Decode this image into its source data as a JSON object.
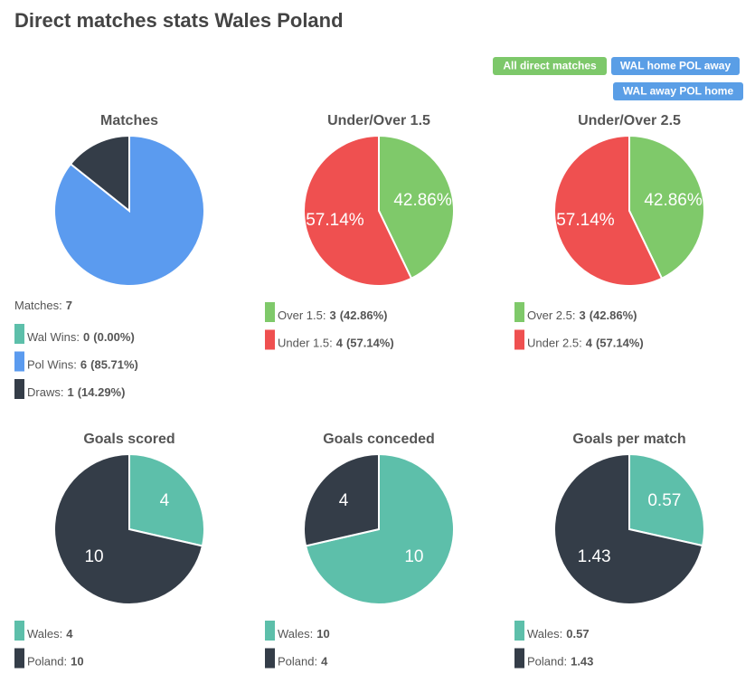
{
  "title": "Direct matches stats Wales Poland",
  "buttons": [
    {
      "label": "All direct matches",
      "color": "#7dc86a"
    },
    {
      "label": "WAL home POL away",
      "color": "#5a9ee6"
    },
    {
      "label": "WAL away POL home",
      "color": "#5a9ee6"
    }
  ],
  "chart_data": [
    {
      "type": "pie",
      "title": "Matches",
      "total_label": "Matches:",
      "total": 7,
      "categories": [
        "Wal Wins:",
        "Pol Wins:",
        "Draws:"
      ],
      "values": [
        0,
        6,
        1
      ],
      "percents": [
        0,
        85.71,
        14.29
      ],
      "percent_labels": [
        "(0.00%)",
        "(85.71%)",
        "(14.29%)"
      ],
      "colors": [
        "#5dbfaa",
        "#5b9bef",
        "#343d48"
      ]
    },
    {
      "type": "pie",
      "title": "Under/Over 1.5",
      "categories": [
        "Over 1.5:",
        "Under 1.5:"
      ],
      "values": [
        3,
        4
      ],
      "percents": [
        42.86,
        57.14
      ],
      "percent_labels": [
        "(42.86%)",
        "(57.14%)"
      ],
      "slice_labels": [
        "42.86%",
        "57.14%"
      ],
      "colors": [
        "#7fc96a",
        "#ef5050"
      ]
    },
    {
      "type": "pie",
      "title": "Under/Over 2.5",
      "categories": [
        "Over 2.5:",
        "Under 2.5:"
      ],
      "values": [
        3,
        4
      ],
      "percents": [
        42.86,
        57.14
      ],
      "percent_labels": [
        "(42.86%)",
        "(57.14%)"
      ],
      "slice_labels": [
        "42.86%",
        "57.14%"
      ],
      "colors": [
        "#7fc96a",
        "#ef5050"
      ]
    },
    {
      "type": "pie",
      "title": "Goals scored",
      "categories": [
        "Wales:",
        "Poland:"
      ],
      "values": [
        4,
        10
      ],
      "values_in_slices": true,
      "colors": [
        "#5dbfaa",
        "#343d48"
      ]
    },
    {
      "type": "pie",
      "title": "Goals conceded",
      "categories": [
        "Wales:",
        "Poland:"
      ],
      "values": [
        10,
        4
      ],
      "values_in_slices": true,
      "colors": [
        "#5dbfaa",
        "#343d48"
      ]
    },
    {
      "type": "pie",
      "title": "Goals per match",
      "categories": [
        "Wales:",
        "Poland:"
      ],
      "values": [
        0.57,
        1.43
      ],
      "values_in_slices": true,
      "colors": [
        "#5dbfaa",
        "#343d48"
      ]
    }
  ]
}
